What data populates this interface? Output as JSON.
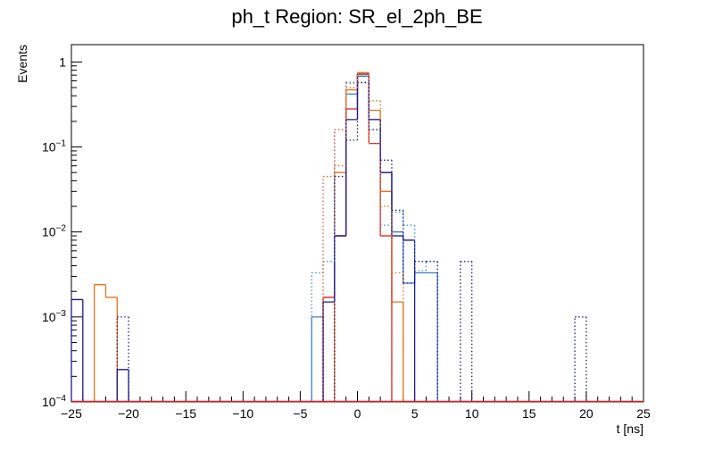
{
  "chart_data": {
    "type": "histogram",
    "title": "ph_t Region: SR_el_2ph_BE",
    "xlabel": "t [ns]",
    "ylabel": "Events",
    "xlim": [
      -25,
      25
    ],
    "ylim": [
      0.0001,
      1.6
    ],
    "y_scale": "log",
    "bin_width": 1,
    "x_ticks": [
      -25,
      -20,
      -15,
      -10,
      -5,
      0,
      5,
      10,
      15,
      20,
      25
    ],
    "y_ticks": [
      {
        "value": 0.0001,
        "base": "10",
        "exp": "-4"
      },
      {
        "value": 0.001,
        "base": "10",
        "exp": "-3"
      },
      {
        "value": 0.01,
        "base": "10",
        "exp": "-2"
      },
      {
        "value": 0.1,
        "base": "10",
        "exp": "-1"
      },
      {
        "value": 1,
        "base": "1",
        "exp": ""
      }
    ],
    "grid": false,
    "series": [
      {
        "color": "#3b7fc4",
        "style": "solid",
        "bins": [
          [
            -4,
            0.001
          ],
          [
            -3,
            0.0001
          ],
          [
            -2,
            0.009
          ],
          [
            -1,
            0.42
          ],
          [
            0,
            0.68
          ],
          [
            1,
            0.21
          ],
          [
            2,
            0.05
          ],
          [
            3,
            0.01
          ],
          [
            4,
            0.0025
          ],
          [
            5,
            0.0033
          ],
          [
            6,
            0.0033
          ],
          [
            7,
            0.0001
          ]
        ]
      },
      {
        "color": "#e8731a",
        "style": "solid",
        "bins": [
          [
            -23,
            0.0024
          ],
          [
            -22,
            0.0017
          ],
          [
            -3,
            0.0001
          ],
          [
            -2,
            0.05
          ],
          [
            -1,
            0.47
          ],
          [
            0,
            0.75
          ],
          [
            1,
            0.27
          ],
          [
            2,
            0.03
          ],
          [
            3,
            0.0015
          ],
          [
            4,
            0.0001
          ]
        ]
      },
      {
        "color": "#d62020",
        "style": "solid",
        "bins": [
          [
            -3,
            0.0017
          ],
          [
            -2,
            0.009
          ],
          [
            -1,
            0.28
          ],
          [
            0,
            0.72
          ],
          [
            1,
            0.11
          ],
          [
            2,
            0.009
          ],
          [
            3,
            0.0001
          ]
        ]
      },
      {
        "color": "#1a1a8c",
        "style": "solid",
        "bins": [
          [
            -25,
            0.0016
          ],
          [
            -24,
            0.0001
          ],
          [
            -21,
            0.00024
          ],
          [
            -20,
            0.0001
          ],
          [
            -3,
            0.0015
          ],
          [
            -2,
            0.009
          ],
          [
            -1,
            0.21
          ],
          [
            0,
            0.72
          ],
          [
            1,
            0.21
          ],
          [
            2,
            0.05
          ],
          [
            3,
            0.009
          ],
          [
            4,
            0.008
          ],
          [
            5,
            0.0001
          ]
        ]
      },
      {
        "color": "#4a8fd0",
        "style": "dotted",
        "bins": [
          [
            -4,
            0.0033
          ],
          [
            -3,
            0.0045
          ],
          [
            -2,
            0.16
          ],
          [
            -1,
            0.58
          ],
          [
            0,
            0.58
          ],
          [
            1,
            0.16
          ],
          [
            2,
            0.012
          ],
          [
            3,
            0.017
          ],
          [
            4,
            0.012
          ],
          [
            5,
            0.0035
          ],
          [
            6,
            0.0045
          ],
          [
            7,
            0.0001
          ]
        ]
      },
      {
        "color": "#e8731a",
        "style": "dotted",
        "bins": [
          [
            -3,
            0.0001
          ],
          [
            -2,
            0.06
          ],
          [
            -1,
            0.5
          ],
          [
            0,
            0.7
          ],
          [
            1,
            0.35
          ],
          [
            2,
            0.02
          ],
          [
            3,
            0.0033
          ],
          [
            4,
            0.0001
          ]
        ]
      },
      {
        "color": "#e06040",
        "style": "dotted",
        "bins": [
          [
            -3,
            0.045
          ],
          [
            -2,
            0.16
          ],
          [
            -1,
            0.56
          ],
          [
            0,
            0.72
          ],
          [
            1,
            0.11
          ],
          [
            2,
            0.009
          ],
          [
            3,
            0.0001
          ]
        ]
      },
      {
        "color": "#1a1a8c",
        "style": "dotted",
        "bins": [
          [
            -21,
            0.001
          ],
          [
            -20,
            0.0001
          ],
          [
            -2,
            0.045
          ],
          [
            -1,
            0.12
          ],
          [
            0,
            0.57
          ],
          [
            1,
            0.16
          ],
          [
            2,
            0.07
          ],
          [
            3,
            0.018
          ],
          [
            4,
            0.0025
          ],
          [
            5,
            0.0045
          ],
          [
            6,
            0.0045
          ],
          [
            9,
            0.0045
          ],
          [
            10,
            0.0001
          ],
          [
            19,
            0.001
          ],
          [
            20,
            0.0001
          ]
        ]
      }
    ],
    "baseline": {
      "color": "#d62020",
      "value": 0.0001
    }
  }
}
